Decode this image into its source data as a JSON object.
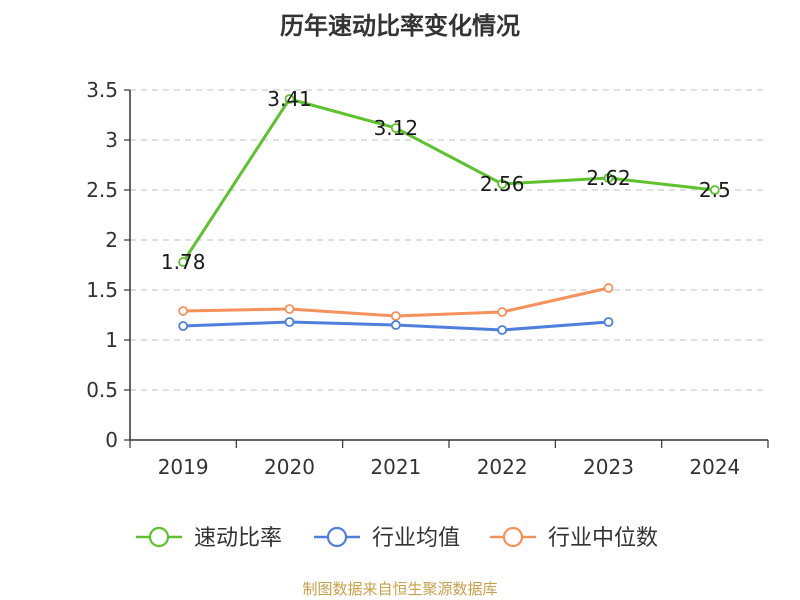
{
  "chart_data": {
    "type": "line",
    "title": "历年速动比率变化情况",
    "categories": [
      "2019",
      "2020",
      "2021",
      "2022",
      "2023",
      "2024"
    ],
    "ylim": [
      0,
      3.5
    ],
    "yticks": [
      "0",
      "0.5",
      "1",
      "1.5",
      "2",
      "2.5",
      "3",
      "3.5"
    ],
    "grid": true,
    "legend_position": "bottom",
    "series": [
      {
        "name": "速动比率",
        "color": "#5ec22e",
        "values": [
          1.78,
          3.41,
          3.12,
          2.56,
          2.62,
          2.5
        ],
        "labels": [
          "1.78",
          "3.41",
          "3.12",
          "2.56",
          "2.62",
          "2.5"
        ]
      },
      {
        "name": "行业均值",
        "color": "#4f7fdc",
        "values": [
          1.14,
          1.18,
          1.15,
          1.1,
          1.18,
          null
        ]
      },
      {
        "name": "行业中位数",
        "color": "#f5915a",
        "values": [
          1.29,
          1.31,
          1.24,
          1.28,
          1.52,
          null
        ]
      }
    ]
  },
  "source": "制图数据来自恒生聚源数据库"
}
